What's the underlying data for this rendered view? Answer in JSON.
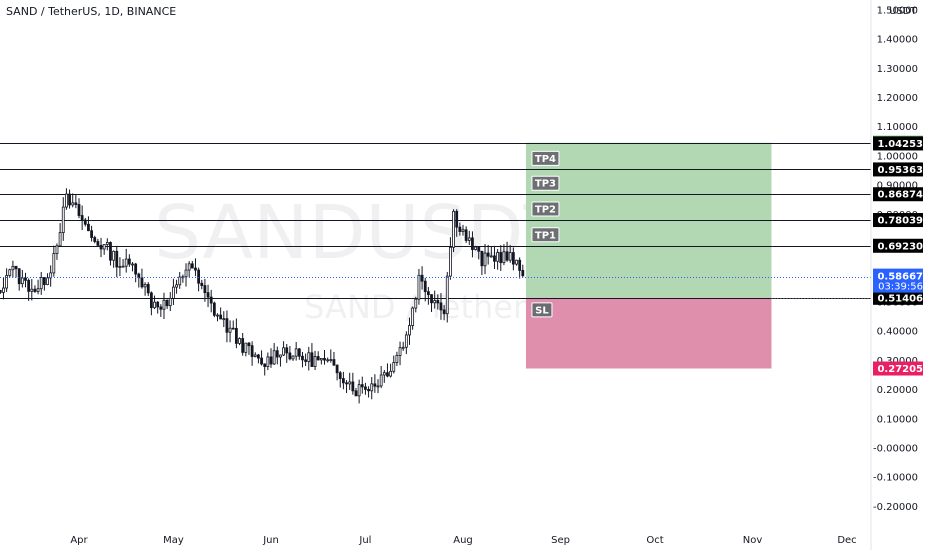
{
  "header": {
    "title": "SAND / TetherUS, 1D, BINANCE"
  },
  "watermark": {
    "symbol": "SANDUSDT, 1D",
    "name": "SAND / TetherUS"
  },
  "colors": {
    "up": "#131722",
    "down": "#131722",
    "profit_zone": "#b2d8b3",
    "loss_zone": "#df8fac",
    "stop_label": "#e91e63",
    "last_price": "#2962ff",
    "target_top": "#4caf50"
  },
  "chart_data": {
    "type": "candlestick",
    "title": "SAND / TetherUS, 1D, BINANCE",
    "currency": "USDT",
    "ylim": [
      -0.25,
      1.52
    ],
    "y_ticks": [
      "1.50000",
      "1.40000",
      "1.30000",
      "1.20000",
      "1.10000",
      "1.00000",
      "0.90000",
      "0.80000",
      "0.70000",
      "0.60000",
      "0.50000",
      "0.40000",
      "0.30000",
      "0.20000",
      "0.10000",
      "-0.00000",
      "-0.10000",
      "-0.20000"
    ],
    "x_ticks": [
      "Apr",
      "May",
      "Jun",
      "Jul",
      "Aug",
      "Sep",
      "Oct",
      "Nov",
      "Dec"
    ],
    "grid": false,
    "candle_anchors": [
      [
        "2022-03-01",
        0.38
      ],
      [
        "2022-03-06",
        0.52
      ],
      [
        "2022-03-10",
        0.62
      ],
      [
        "2022-03-14",
        0.57
      ],
      [
        "2022-03-19",
        0.54
      ],
      [
        "2022-03-23",
        0.62
      ],
      [
        "2022-03-28",
        0.85
      ],
      [
        "2022-04-01",
        0.8
      ],
      [
        "2022-04-05",
        0.72
      ],
      [
        "2022-04-10",
        0.68
      ],
      [
        "2022-04-14",
        0.63
      ],
      [
        "2022-04-19",
        0.62
      ],
      [
        "2022-04-24",
        0.5
      ],
      [
        "2022-04-29",
        0.49
      ],
      [
        "2022-05-03",
        0.57
      ],
      [
        "2022-05-06",
        0.64
      ],
      [
        "2022-05-10",
        0.54
      ],
      [
        "2022-05-14",
        0.47
      ],
      [
        "2022-05-19",
        0.4
      ],
      [
        "2022-05-24",
        0.34
      ],
      [
        "2022-05-29",
        0.28
      ],
      [
        "2022-06-04",
        0.34
      ],
      [
        "2022-06-10",
        0.31
      ],
      [
        "2022-06-16",
        0.3
      ],
      [
        "2022-06-22",
        0.27
      ],
      [
        "2022-06-28",
        0.2
      ],
      [
        "2022-07-04",
        0.22
      ],
      [
        "2022-07-09",
        0.28
      ],
      [
        "2022-07-14",
        0.38
      ],
      [
        "2022-07-18",
        0.58
      ],
      [
        "2022-07-22",
        0.52
      ],
      [
        "2022-07-26",
        0.48
      ],
      [
        "2022-07-29",
        0.8
      ],
      [
        "2022-08-02",
        0.72
      ],
      [
        "2022-08-07",
        0.64
      ],
      [
        "2022-08-12",
        0.66
      ],
      [
        "2022-08-16",
        0.65
      ],
      [
        "2022-08-20",
        0.59
      ]
    ],
    "current": {
      "price": "0.58667",
      "countdown": "03:39:56"
    },
    "horizontal_levels": [
      {
        "name": "level-1",
        "value": 1.04253,
        "label": "1.04253"
      },
      {
        "name": "level-2",
        "value": 0.95363,
        "label": "0.95363"
      },
      {
        "name": "level-3",
        "value": 0.86874,
        "label": "0.86874"
      },
      {
        "name": "level-4",
        "value": 0.78039,
        "label": "0.78039"
      },
      {
        "name": "level-5",
        "value": 0.6923,
        "label": "0.69230"
      },
      {
        "name": "level-6",
        "value": 0.51406,
        "label": "0.51406"
      }
    ],
    "position": {
      "start_date": "2022-08-21",
      "end_date": "2022-11-07",
      "entry": 0.51406,
      "stop": 0.27205,
      "target": 1.045,
      "target_label": "1.04500",
      "stop_label": "0.27205"
    },
    "take_profits": [
      {
        "label": "TP1",
        "value": 0.6923
      },
      {
        "label": "TP2",
        "value": 0.78039
      },
      {
        "label": "TP3",
        "value": 0.86874
      },
      {
        "label": "TP4",
        "value": 0.95363
      }
    ],
    "stop_loss": {
      "label": "SL",
      "value": 0.51406
    }
  }
}
